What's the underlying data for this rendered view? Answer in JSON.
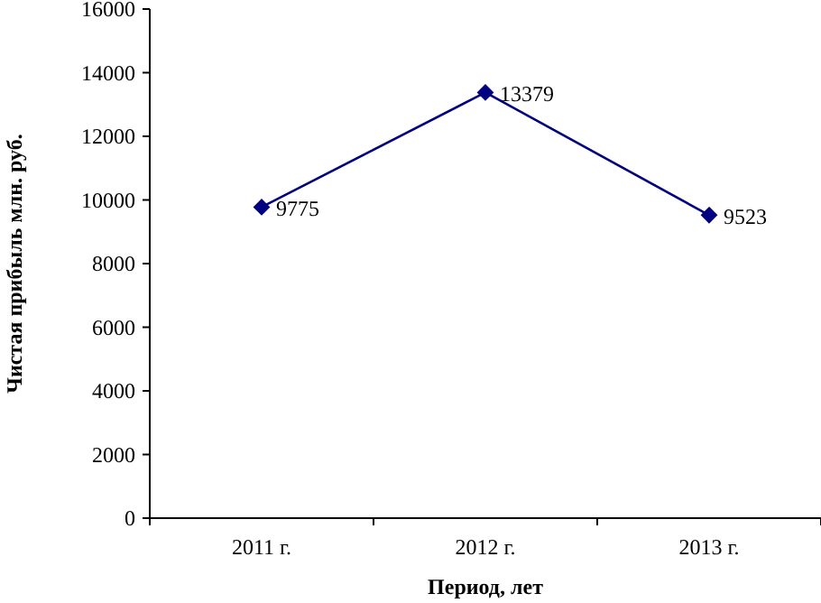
{
  "chart_data": {
    "type": "line",
    "xlabel": "Период, лет",
    "ylabel": "Чистая прибыль млн. руб.",
    "categories": [
      "2011 г.",
      "2012 г.",
      "2013 г."
    ],
    "series": [
      {
        "color": "#000080",
        "values": [
          9775,
          13379,
          9523
        ]
      }
    ],
    "ylim": [
      0,
      16000
    ],
    "yticks": [
      0,
      2000,
      4000,
      6000,
      8000,
      10000,
      12000,
      14000,
      16000
    ],
    "data_labels": true,
    "marker": "diamond",
    "grid": false
  }
}
